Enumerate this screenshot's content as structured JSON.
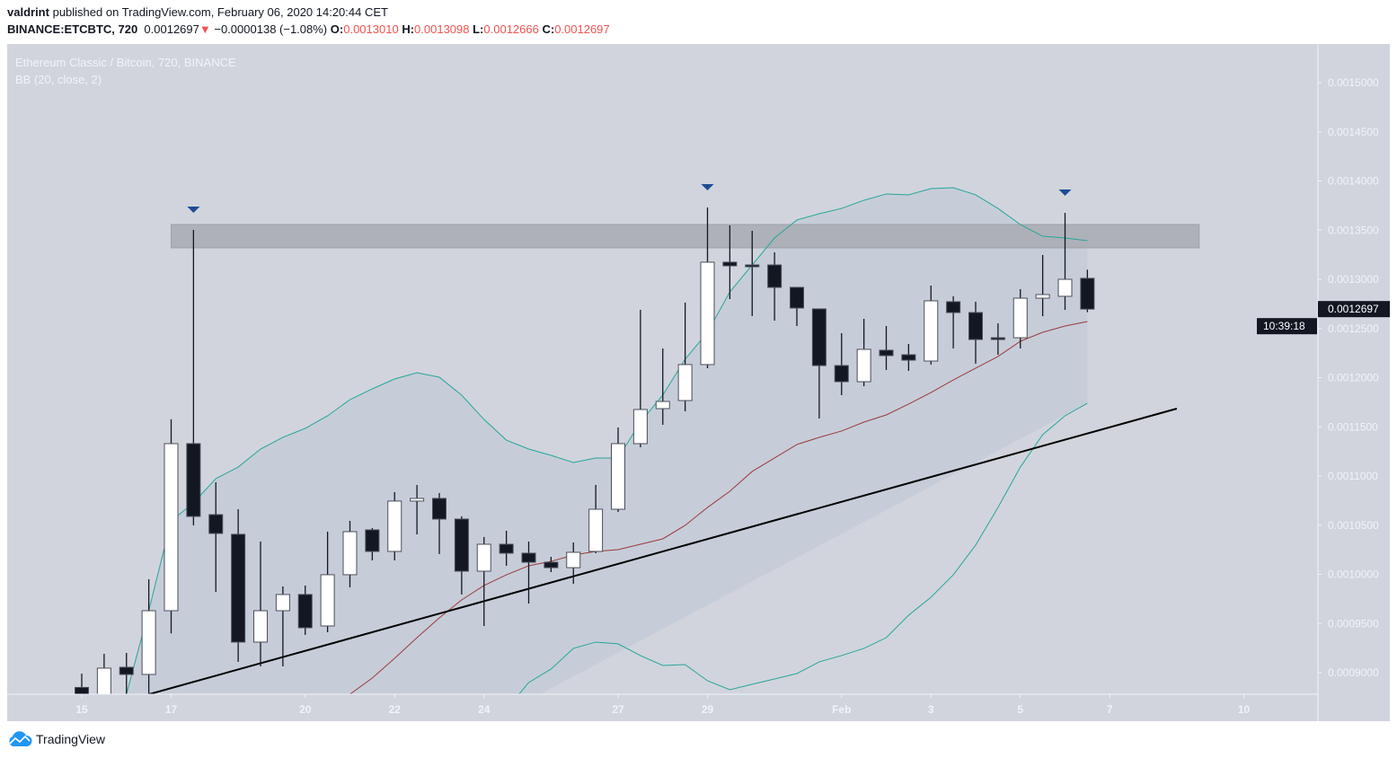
{
  "header": {
    "author": "valdrint",
    "published_text": "published on TradingView.com, February 06, 2020 14:20:44 CET",
    "symbol": "BINANCE:ETCBTC, 720",
    "last": "0.0012697",
    "change": "−0.0000138 (−1.08%)",
    "o_label": "O:",
    "o": "0.0013010",
    "h_label": "H:",
    "h": "0.0013098",
    "l_label": "L:",
    "l": "0.0012666",
    "c_label": "C:",
    "c": "0.0012697"
  },
  "legend": {
    "title": "Ethereum Classic / Bitcoin, 720, BINANCE",
    "indicator": "BB (20, close, 2)"
  },
  "price_label": "0.0012697",
  "countdown": "10:39:18",
  "brand": "TradingView",
  "colors": {
    "background": "#d1d4dc",
    "band_fill": "#c6cdd8",
    "band_upper_lower": "#26a69a",
    "band_basis": "#9c3a3a",
    "candle_up": "#ffffff",
    "candle_down": "#131722",
    "zone": "#a8aab2",
    "trendline": "#000000",
    "arrow": "#1e4b96"
  },
  "chart_data": {
    "type": "candlestick",
    "title": "Ethereum Classic / Bitcoin, 720, BINANCE",
    "ylim": [
      0.00088,
      0.00155
    ],
    "y_ticks": [
      "0.0009000",
      "0.0009500",
      "0.0010000",
      "0.0010500",
      "0.0011000",
      "0.0011500",
      "0.0012000",
      "0.0012500",
      "0.0013000",
      "0.0013500",
      "0.0014000",
      "0.0014500",
      "0.0015000"
    ],
    "x_ticks": [
      {
        "label": "15",
        "t": "2020-01-15T00:00"
      },
      {
        "label": "17",
        "t": "2020-01-17T00:00"
      },
      {
        "label": "20",
        "t": "2020-01-20T00:00"
      },
      {
        "label": "22",
        "t": "2020-01-22T00:00"
      },
      {
        "label": "24",
        "t": "2020-01-24T00:00"
      },
      {
        "label": "27",
        "t": "2020-01-27T00:00"
      },
      {
        "label": "29",
        "t": "2020-01-29T00:00"
      },
      {
        "label": "Feb",
        "t": "2020-02-01T00:00"
      },
      {
        "label": "3",
        "t": "2020-02-03T00:00"
      },
      {
        "label": "5",
        "t": "2020-02-05T00:00"
      },
      {
        "label": "7",
        "t": "2020-02-07T00:00"
      },
      {
        "label": "10",
        "t": "2020-02-10T00:00"
      }
    ],
    "start": "2020-01-15T00:00",
    "interval_hours": 12,
    "ohlc": [
      [
        0.000885,
        0.000899,
        0.00087,
        0.000875
      ],
      [
        0.00087,
        0.0009192,
        0.00087,
        0.0009046
      ],
      [
        0.0009055,
        0.0009201,
        0.00087,
        0.0008982
      ],
      [
        0.0008982,
        0.000995,
        0.00087,
        0.000963
      ],
      [
        0.000963,
        0.0011576,
        0.00094,
        0.0011329
      ],
      [
        0.0011329,
        0.0013502,
        0.0010498,
        0.0010589
      ],
      [
        0.0010607,
        0.0010936,
        0.0009822,
        0.0010416
      ],
      [
        0.0010407,
        0.0010662,
        0.000911,
        0.0009311
      ],
      [
        0.0009311,
        0.0010333,
        0.0009064,
        0.000963
      ],
      [
        0.000963,
        0.0009877,
        0.0009064,
        0.0009795
      ],
      [
        0.0009795,
        0.0009886,
        0.0009384,
        0.0009457
      ],
      [
        0.0009475,
        0.0010434,
        0.0009411,
        0.0009996
      ],
      [
        0.0009996,
        0.0010544,
        0.0009868,
        0.0010434
      ],
      [
        0.0010452,
        0.0010471,
        0.0010142,
        0.0010233
      ],
      [
        0.0010233,
        0.0010836,
        0.0010142,
        0.0010745
      ],
      [
        0.0010745,
        0.0010909,
        0.0010406,
        0.0010772
      ],
      [
        0.0010772,
        0.0010827,
        0.0010206,
        0.0010562
      ],
      [
        0.0010562,
        0.001059,
        0.0009795,
        0.0010032
      ],
      [
        0.0010032,
        0.001038,
        0.0009475,
        0.0010306
      ],
      [
        0.0010306,
        0.0010443,
        0.0010087,
        0.0010215
      ],
      [
        0.0010215,
        0.0010333,
        0.0009703,
        0.0010123
      ],
      [
        0.0010123,
        0.0010178,
        0.0010023,
        0.0010068
      ],
      [
        0.0010068,
        0.0010324,
        0.0009904,
        0.0010224
      ],
      [
        0.0010233,
        0.0010909,
        0.0010214,
        0.0010662
      ],
      [
        0.0010662,
        0.0011493,
        0.0010635,
        0.0011329
      ],
      [
        0.0011329,
        0.001269,
        0.0011292,
        0.0011676
      ],
      [
        0.0011685,
        0.0012297,
        0.0011521,
        0.0011758
      ],
      [
        0.0011767,
        0.0012763,
        0.0011658,
        0.0012133
      ],
      [
        0.0012133,
        0.0013731,
        0.0012096,
        0.0013174
      ],
      [
        0.0013174,
        0.0013548,
        0.0012799,
        0.0013137
      ],
      [
        0.0013146,
        0.0013493,
        0.0012626,
        0.0013128
      ],
      [
        0.0013146,
        0.0013274,
        0.001258,
        0.0012918
      ],
      [
        0.0012918,
        0.0012918,
        0.0012525,
        0.0012708
      ],
      [
        0.0012699,
        0.0012699,
        0.0011585,
        0.0012123
      ],
      [
        0.0012123,
        0.0012452,
        0.0011822,
        0.0011959
      ],
      [
        0.0011959,
        0.0012598,
        0.0011913,
        0.0012288
      ],
      [
        0.0012279,
        0.0012525,
        0.0012078,
        0.0012224
      ],
      [
        0.0012233,
        0.0012343,
        0.0012069,
        0.0012178
      ],
      [
        0.0012169,
        0.0012936,
        0.0012133,
        0.0012781
      ],
      [
        0.0012772,
        0.0012827,
        0.0012297,
        0.0012662
      ],
      [
        0.0012662,
        0.0012772,
        0.0012142,
        0.0012388
      ],
      [
        0.0012406,
        0.0012552,
        0.0012233,
        0.0012397
      ],
      [
        0.0012406,
        0.00129,
        0.0012297,
        0.0012808
      ],
      [
        0.0012808,
        0.0013247,
        0.0012625,
        0.0012845
      ],
      [
        0.0012827,
        0.0013676,
        0.0012689,
        0.0013
      ],
      [
        0.001301,
        0.0013098,
        0.0012666,
        0.0012697
      ]
    ],
    "bb_upper": [
      null,
      null,
      0.0008781,
      0.000963,
      0.0010543,
      0.0010726,
      0.0010973,
      0.0011091,
      0.0011274,
      0.0011393,
      0.0011484,
      0.0011612,
      0.0011776,
      0.0011886,
      0.0011986,
      0.001205,
      0.0012005,
      0.0011822,
      0.0011575,
      0.0011365,
      0.0011274,
      0.001121,
      0.0011137,
      0.0011183,
      0.0011183,
      0.0011548,
      0.0011822,
      0.0012187,
      0.0012461,
      0.0012872,
      0.0013146,
      0.001342,
      0.0013603,
      0.0013667,
      0.0013721,
      0.0013804,
      0.0013868,
      0.0013859,
      0.0013922,
      0.0013931,
      0.0013859,
      0.0013721,
      0.0013557,
      0.0013438,
      0.001342,
      0.0013393
    ],
    "bb_basis": [
      null,
      null,
      null,
      null,
      null,
      null,
      null,
      null,
      null,
      null,
      null,
      null,
      0.0008781,
      0.0008945,
      0.0009146,
      0.0009356,
      0.0009557,
      0.000974,
      0.0009886,
      0.0009995,
      0.0010087,
      0.0010132,
      0.0010196,
      0.0010233,
      0.0010251,
      0.0010306,
      0.0010361,
      0.0010498,
      0.001068,
      0.0010845,
      0.0011046,
      0.0011183,
      0.001132,
      0.0011393,
      0.0011457,
      0.0011548,
      0.0011621,
      0.0011731,
      0.0011849,
      0.0011977,
      0.0012096,
      0.0012215,
      0.001237,
      0.0012461,
      0.0012525,
      0.0012571
    ],
    "bb_lower": [
      null,
      null,
      null,
      null,
      null,
      null,
      null,
      null,
      null,
      null,
      null,
      null,
      null,
      null,
      null,
      null,
      null,
      null,
      null,
      0.0008626,
      0.00089,
      0.0009037,
      0.0009247,
      0.0009311,
      0.0009293,
      0.0009174,
      0.0009073,
      0.0009082,
      0.0008918,
      0.0008827,
      0.0008882,
      0.0008936,
      0.0008991,
      0.000911,
      0.0009174,
      0.0009247,
      0.0009356,
      0.0009584,
      0.0009767,
      0.0009995,
      0.0010297,
      0.001068,
      0.0011091,
      0.001142,
      0.0011612,
      0.001174
    ],
    "resistance_zone": {
      "from": "2020-01-17T00:00",
      "to": "2020-02-09T00:00",
      "low": 0.001332,
      "high": 0.0013557
    },
    "trendline": {
      "t1": "2020-01-16T12:00",
      "p1": 0.000878,
      "t2": "2020-02-08T12:00",
      "p2": 0.0011685
    },
    "markers": [
      {
        "type": "arrow-down",
        "index": 5
      },
      {
        "type": "arrow-down",
        "index": 28
      },
      {
        "type": "arrow-down",
        "index": 44
      }
    ]
  }
}
